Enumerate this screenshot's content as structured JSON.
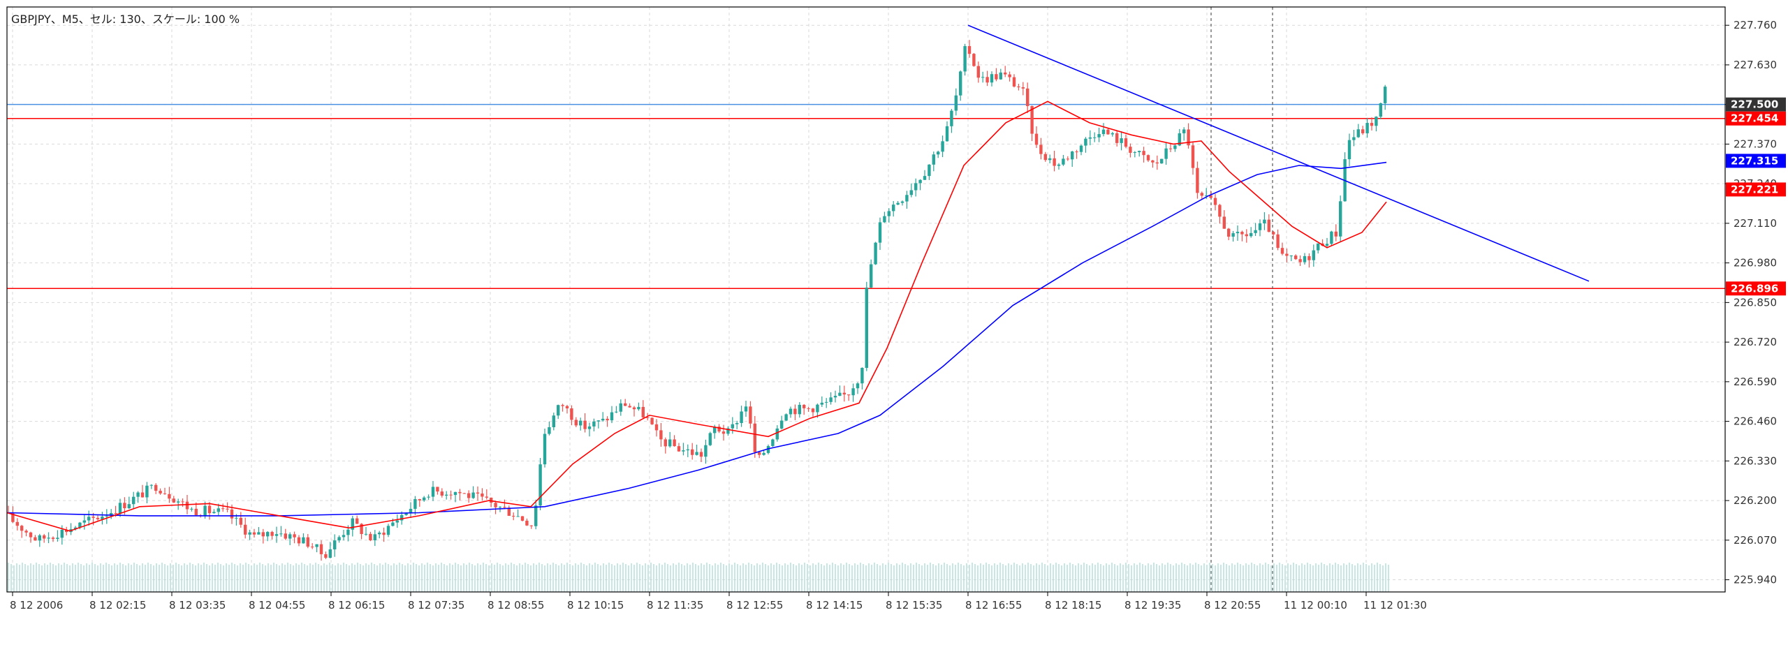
{
  "header": {
    "title": "GBPJPY、M5、セル: 130、スケール: 100 %"
  },
  "colors": {
    "background": "#ffffff",
    "grid": "#d9d9d9",
    "bull": "#26a69a",
    "bear": "#ef5350",
    "ma_fast": "#ff0000",
    "ma_slow": "#0000ff",
    "trendline": "#0000ff",
    "hline_red": "#ff0000",
    "hline_blue": "#4a90e2",
    "volume": "#b2dfdb",
    "tag_dark": "#333333"
  },
  "chart_data": {
    "type": "candlestick",
    "symbol": "GBPJPY",
    "timeframe": "M5",
    "ylim": [
      225.9,
      227.82
    ],
    "y_ticks": [
      "227.760",
      "227.630",
      "227.500",
      "227.370",
      "227.240",
      "227.110",
      "226.980",
      "226.850",
      "226.720",
      "226.590",
      "226.460",
      "226.330",
      "226.200",
      "226.070",
      "225.940"
    ],
    "x_labels": [
      "8 12 2006",
      "8 12 02:15",
      "8 12 03:35",
      "8 12 04:55",
      "8 12 06:15",
      "8 12 07:35",
      "8 12 08:55",
      "8 12 10:15",
      "8 12 11:35",
      "8 12 12:55",
      "8 12 14:15",
      "8 12 15:35",
      "8 12 16:55",
      "8 12 18:15",
      "8 12 19:35",
      "8 12 20:55",
      "11 12 00:10",
      "11 12 01:30"
    ],
    "grid": true,
    "horizontal_lines": [
      {
        "price": 227.5,
        "label": "227.500",
        "color": "#4a90e2",
        "tag_color": "#333333"
      },
      {
        "price": 227.454,
        "label": "227.454",
        "color": "#ff0000",
        "tag_color": "#ff0000"
      },
      {
        "price": 226.896,
        "label": "226.896",
        "color": "#ff0000",
        "tag_color": "#ff0000"
      }
    ],
    "indicator_tags": [
      {
        "price": 227.315,
        "label": "227.315",
        "color": "#0000ff"
      },
      {
        "price": 227.221,
        "label": "227.221",
        "color": "#ff0000"
      }
    ],
    "trendline": {
      "from": [
        1386,
        227.76
      ],
      "to": [
        2275,
        226.92
      ]
    },
    "separators": [
      1734,
      1822
    ],
    "anchors": [
      [
        10,
        226.16
      ],
      [
        60,
        226.07
      ],
      [
        120,
        226.12
      ],
      [
        170,
        226.17
      ],
      [
        230,
        226.25
      ],
      [
        280,
        226.17
      ],
      [
        330,
        226.16
      ],
      [
        370,
        226.08
      ],
      [
        400,
        226.1
      ],
      [
        450,
        226.06
      ],
      [
        470,
        226.02
      ],
      [
        510,
        226.13
      ],
      [
        540,
        226.07
      ],
      [
        580,
        226.15
      ],
      [
        620,
        226.23
      ],
      [
        660,
        226.23
      ],
      [
        700,
        226.2
      ],
      [
        740,
        226.16
      ],
      [
        770,
        226.12
      ],
      [
        785,
        226.42
      ],
      [
        810,
        226.52
      ],
      [
        840,
        226.44
      ],
      [
        870,
        226.46
      ],
      [
        900,
        226.52
      ],
      [
        930,
        226.48
      ],
      [
        950,
        226.4
      ],
      [
        980,
        226.37
      ],
      [
        1010,
        226.35
      ],
      [
        1030,
        226.44
      ],
      [
        1050,
        226.42
      ],
      [
        1075,
        226.52
      ],
      [
        1090,
        226.32
      ],
      [
        1110,
        226.4
      ],
      [
        1130,
        226.5
      ],
      [
        1160,
        226.5
      ],
      [
        1190,
        226.52
      ],
      [
        1220,
        226.55
      ],
      [
        1240,
        226.62
      ],
      [
        1248,
        226.92
      ],
      [
        1270,
        227.14
      ],
      [
        1300,
        227.2
      ],
      [
        1330,
        227.28
      ],
      [
        1360,
        227.4
      ],
      [
        1378,
        227.55
      ],
      [
        1390,
        227.7
      ],
      [
        1410,
        227.58
      ],
      [
        1440,
        227.6
      ],
      [
        1470,
        227.55
      ],
      [
        1490,
        227.36
      ],
      [
        1520,
        227.3
      ],
      [
        1550,
        227.36
      ],
      [
        1580,
        227.42
      ],
      [
        1610,
        227.38
      ],
      [
        1640,
        227.33
      ],
      [
        1660,
        227.3
      ],
      [
        1690,
        227.38
      ],
      [
        1705,
        227.42
      ],
      [
        1720,
        227.2
      ],
      [
        1740,
        227.18
      ],
      [
        1770,
        227.06
      ],
      [
        1800,
        227.08
      ],
      [
        1820,
        227.11
      ],
      [
        1840,
        227.0
      ],
      [
        1870,
        226.98
      ],
      [
        1900,
        227.05
      ],
      [
        1920,
        227.08
      ],
      [
        1935,
        227.38
      ],
      [
        1960,
        227.42
      ],
      [
        1980,
        227.46
      ],
      [
        1988,
        227.55
      ]
    ],
    "ma_fast": [
      [
        10,
        226.16
      ],
      [
        100,
        226.1
      ],
      [
        200,
        226.18
      ],
      [
        300,
        226.19
      ],
      [
        400,
        226.15
      ],
      [
        500,
        226.11
      ],
      [
        600,
        226.15
      ],
      [
        700,
        226.2
      ],
      [
        760,
        226.18
      ],
      [
        820,
        226.32
      ],
      [
        880,
        226.42
      ],
      [
        930,
        226.48
      ],
      [
        1000,
        226.45
      ],
      [
        1100,
        226.41
      ],
      [
        1160,
        226.47
      ],
      [
        1230,
        226.52
      ],
      [
        1270,
        226.7
      ],
      [
        1320,
        226.98
      ],
      [
        1380,
        227.3
      ],
      [
        1440,
        227.44
      ],
      [
        1500,
        227.51
      ],
      [
        1560,
        227.44
      ],
      [
        1620,
        227.4
      ],
      [
        1680,
        227.37
      ],
      [
        1720,
        227.38
      ],
      [
        1760,
        227.28
      ],
      [
        1800,
        227.2
      ],
      [
        1850,
        227.1
      ],
      [
        1900,
        227.03
      ],
      [
        1950,
        227.08
      ],
      [
        1985,
        227.18
      ]
    ],
    "ma_slow": [
      [
        10,
        226.16
      ],
      [
        200,
        226.15
      ],
      [
        400,
        226.15
      ],
      [
        600,
        226.16
      ],
      [
        780,
        226.18
      ],
      [
        900,
        226.24
      ],
      [
        1000,
        226.3
      ],
      [
        1100,
        226.37
      ],
      [
        1200,
        226.42
      ],
      [
        1260,
        226.48
      ],
      [
        1350,
        226.64
      ],
      [
        1450,
        226.84
      ],
      [
        1550,
        226.98
      ],
      [
        1650,
        227.1
      ],
      [
        1730,
        227.2
      ],
      [
        1800,
        227.27
      ],
      [
        1860,
        227.3
      ],
      [
        1920,
        227.29
      ],
      [
        1985,
        227.31
      ]
    ]
  }
}
